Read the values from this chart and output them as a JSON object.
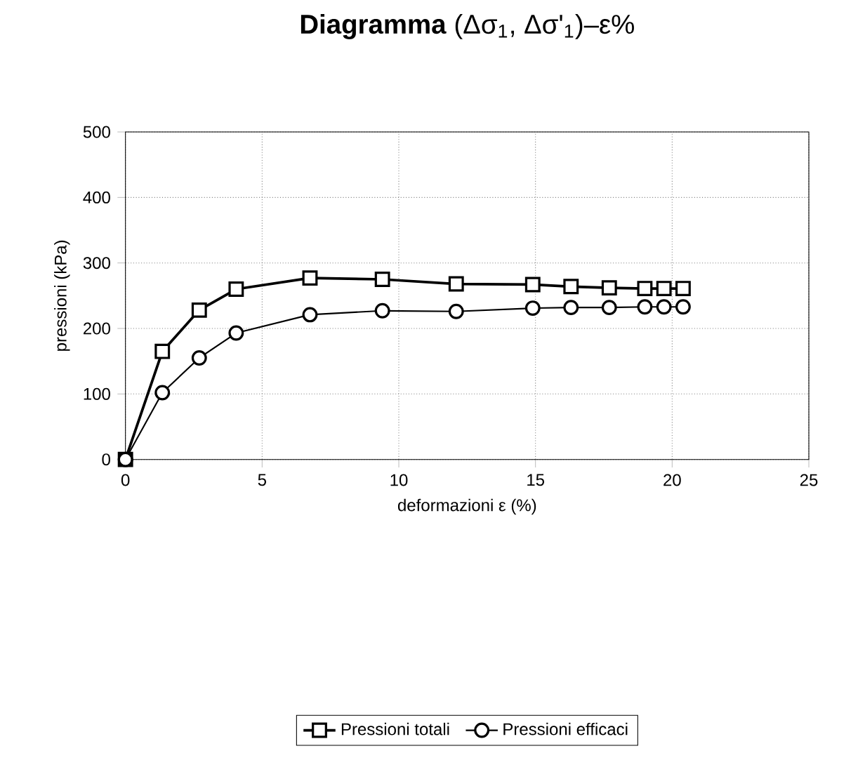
{
  "chart_data": {
    "type": "line",
    "title": "**Diagramma** (Δσ$_{1}$, Δσ'$_{1}$)–ε%",
    "xlabel": "deformazioni  ε (%)",
    "ylabel": "pressioni (kPa)",
    "x": [
      0,
      1.35,
      2.7,
      4.05,
      6.75,
      9.4,
      12.1,
      14.9,
      16.3,
      17.7,
      19,
      19.7,
      20.4
    ],
    "series": [
      {
        "name": "Pressioni totali",
        "color": "#000000",
        "marker": "square",
        "values": [
          0,
          165,
          228,
          260,
          277,
          275,
          268,
          267,
          264,
          262,
          261,
          261,
          261
        ]
      },
      {
        "name": "Pressioni efficaci",
        "color": "#000000",
        "marker": "circle",
        "values": [
          0,
          102,
          155,
          193,
          221,
          227,
          226,
          231,
          232,
          232,
          233,
          233,
          233
        ]
      }
    ],
    "xlim": [
      0,
      25
    ],
    "xticks": [
      0,
      5,
      10,
      15,
      20,
      25
    ],
    "ylim": [
      0,
      500
    ],
    "yticks": [
      0,
      100,
      200,
      300,
      400,
      500
    ],
    "grid": true,
    "legend": "bottom",
    "line_style": "solid"
  }
}
